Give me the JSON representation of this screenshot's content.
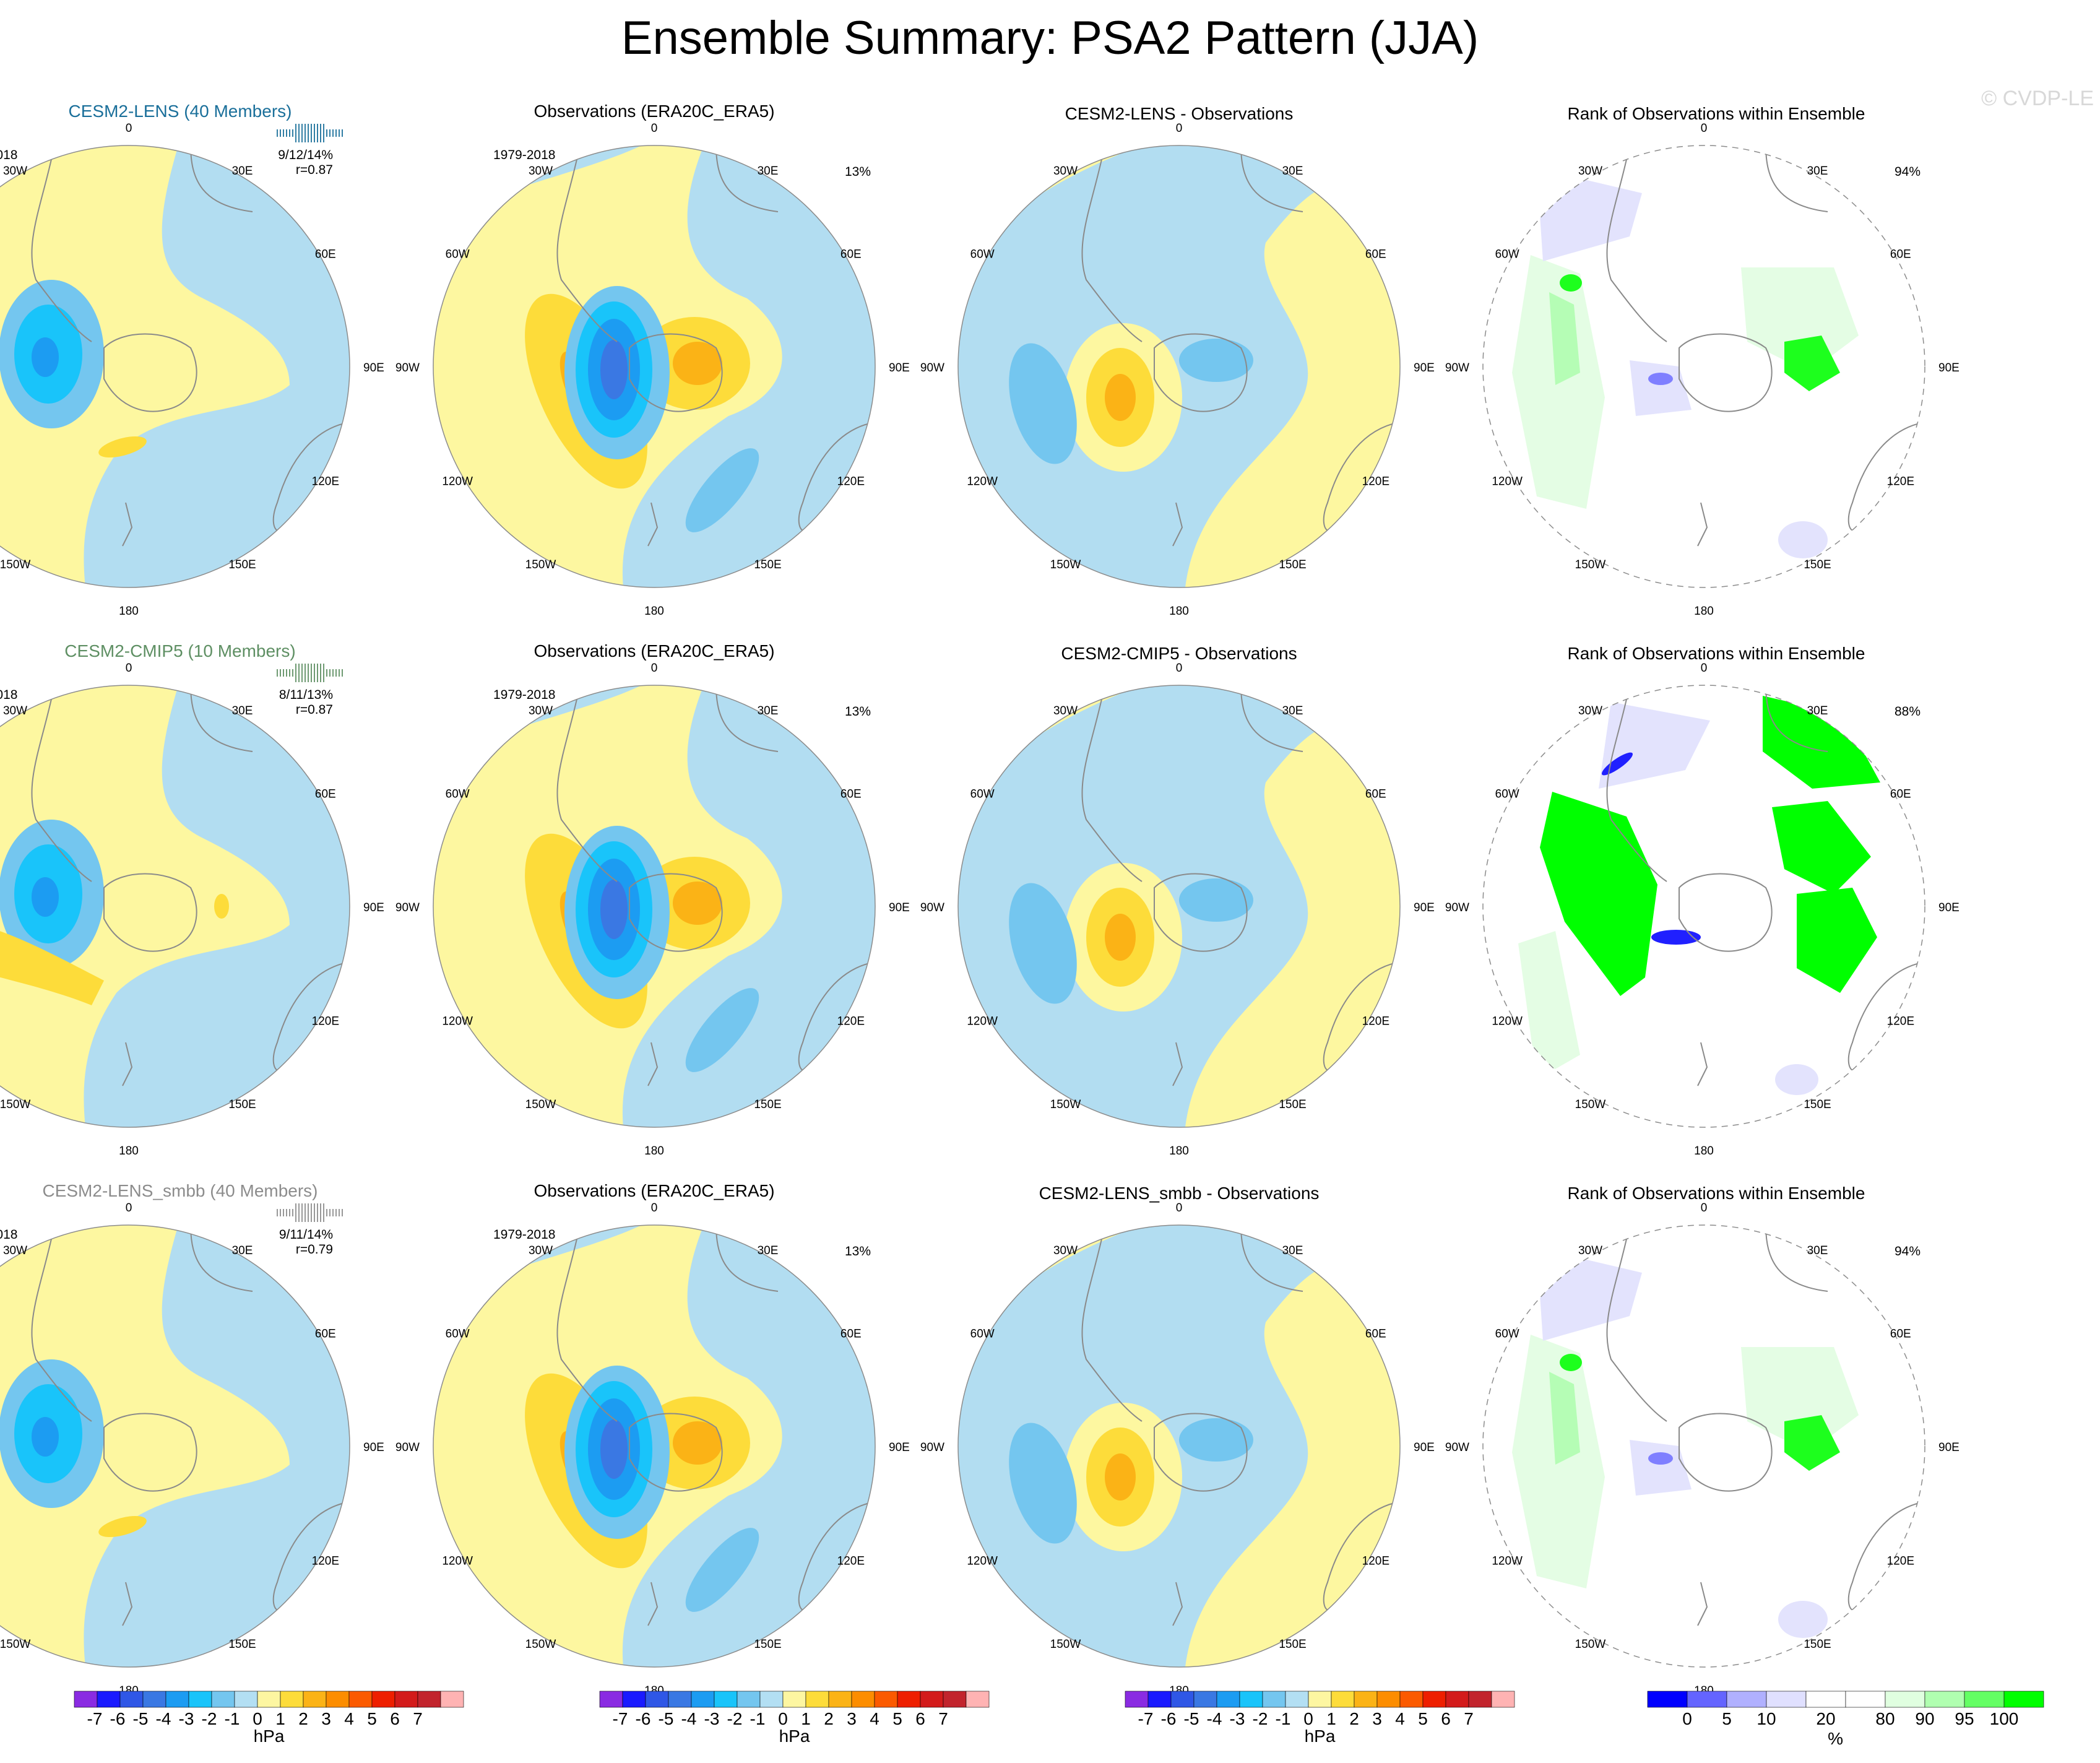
{
  "title": "Ensemble Summary: PSA2 Pattern (JJA)",
  "watermark": "© CVDP-LE",
  "colors": {
    "ocean_fill": "#b2ddf1",
    "land_fill": "#fdf7a0",
    "coast": "#8a8a8a",
    "circle_border": "#8c8c8c",
    "lens_title": "#1a6f9a",
    "cmip5_title": "#5e8f63",
    "smbb_title": "#8c8c8c"
  },
  "hpa_colorbar": {
    "colors": [
      "#8a2be2",
      "#1a1aff",
      "#2f57e6",
      "#3a78e3",
      "#1c9cf2",
      "#19c4fa",
      "#74c6ef",
      "#b3dff3",
      "#fdf6a1",
      "#fddc3a",
      "#fbb316",
      "#fc8d00",
      "#fb5a00",
      "#ee1f00",
      "#d31b1b",
      "#c2242d",
      "#ffb3b3"
    ],
    "labels": [
      "-7",
      "-6",
      "-5",
      "-4",
      "-3",
      "-2",
      "-1",
      "0",
      "1",
      "2",
      "3",
      "4",
      "5",
      "6",
      "7"
    ],
    "unit": "hPa"
  },
  "rank_colorbar": {
    "colors": [
      "#0000ff",
      "#6464ff",
      "#b0b0ff",
      "#e0e0ff",
      "#ffffff",
      "#ffffff",
      "#e0ffe0",
      "#b0ffb0",
      "#64ff64",
      "#00ff00"
    ],
    "labels": [
      "0",
      "5",
      "10",
      "20",
      "80",
      "90",
      "95",
      "100"
    ],
    "unit": "%"
  },
  "lon_labels": [
    "0",
    "30E",
    "60E",
    "90E",
    "120E",
    "150E",
    "180",
    "150W",
    "120W",
    "90W",
    "60W",
    "30W"
  ],
  "rows": [
    {
      "model_title": "CESM2-LENS (40 Members)",
      "model_stats": "9/12/14%",
      "model_corr": "r=0.87",
      "period": "1979-2018",
      "obs_title": "Observations (ERA20C_ERA5)",
      "obs_pct": "13%",
      "diff_title": "CESM2-LENS - Observations",
      "rank_title": "Rank of Observations within Ensemble",
      "rank_pct": "94%"
    },
    {
      "model_title": "CESM2-CMIP5 (10 Members)",
      "model_stats": "8/11/13%",
      "model_corr": "r=0.87",
      "period": "1979-2018",
      "obs_title": "Observations (ERA20C_ERA5)",
      "obs_pct": "13%",
      "diff_title": "CESM2-CMIP5 - Observations",
      "rank_title": "Rank of Observations within Ensemble",
      "rank_pct": "88%"
    },
    {
      "model_title": "CESM2-LENS_smbb (40 Members)",
      "model_stats": "9/11/14%",
      "model_corr": "r=0.79",
      "period": "1979-2018",
      "obs_title": "Observations (ERA20C_ERA5)",
      "obs_pct": "13%",
      "diff_title": "CESM2-LENS_smbb - Observations",
      "rank_title": "Rank of Observations within Ensemble",
      "rank_pct": "94%"
    }
  ]
}
